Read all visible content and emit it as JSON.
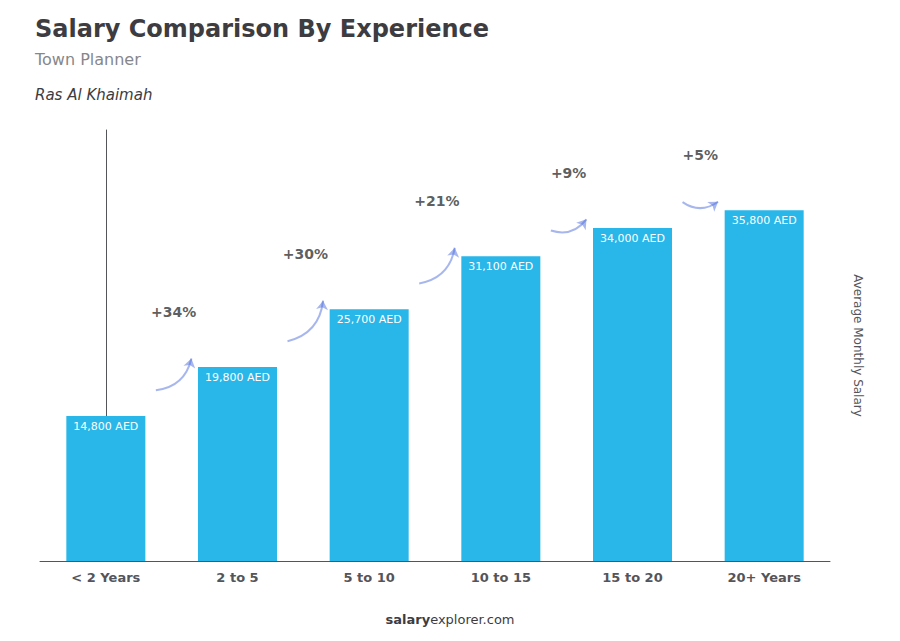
{
  "chart_data": {
    "type": "bar",
    "title": "Salary Comparison By Experience",
    "subtitle": "Town Planner",
    "ylabel": "Average Monthly Salary",
    "categories": [
      "< 2 Years",
      "2 to 5",
      "5 to 10",
      "10 to 15",
      "15 to 20",
      "20+ Years"
    ],
    "values": [
      14800,
      19800,
      25700,
      31100,
      34000,
      35800
    ],
    "value_labels": [
      "14,800 AED",
      "19,800 AED",
      "25,700 AED",
      "31,100 AED",
      "34,000 AED",
      "35,800 AED"
    ],
    "data_labels": true,
    "color": "#29b6e8",
    "ylim": [
      0,
      44000
    ],
    "tick_labels": "x",
    "grid": false,
    "annotations": {
      "location": "Ras Al Khaimah",
      "pct_changes": [
        "+34%",
        "+30%",
        "+21%",
        "+9%",
        "+5%"
      ],
      "footer": [
        "salary",
        "explorer.com"
      ]
    }
  }
}
